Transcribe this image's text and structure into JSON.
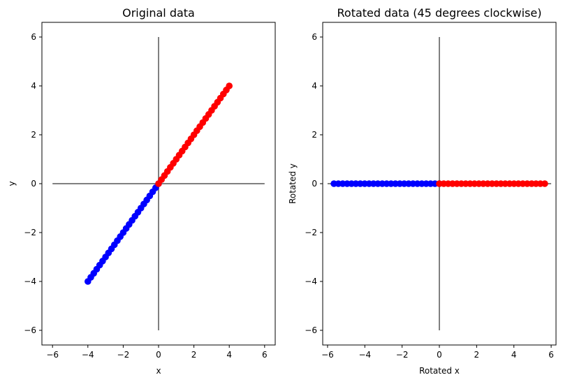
{
  "chart_data": [
    {
      "type": "scatter",
      "title": "Original data",
      "xlabel": "x",
      "ylabel": "y",
      "xlim": [
        -6.6,
        6.6
      ],
      "ylim": [
        -6.6,
        6.6
      ],
      "xticks": [
        -6,
        -4,
        -2,
        0,
        2,
        4,
        6
      ],
      "yticks": [
        -6,
        -4,
        -2,
        0,
        2,
        4,
        6
      ],
      "xtick_labels": [
        "−6",
        "−4",
        "−2",
        "0",
        "2",
        "4",
        "6"
      ],
      "ytick_labels": [
        "−6",
        "−4",
        "−2",
        "0",
        "2",
        "4",
        "6"
      ],
      "reference_lines": [
        {
          "orientation": "horizontal",
          "at": 0,
          "from": -6,
          "to": 6,
          "color": "#808080"
        },
        {
          "orientation": "vertical",
          "at": 0,
          "from": -6,
          "to": 6,
          "color": "#808080"
        }
      ],
      "grid": false,
      "series": [
        {
          "color": "#0000ff",
          "x_start": -4,
          "x_end": 0,
          "y_start": -4,
          "y_end": 0,
          "count": 25
        },
        {
          "color": "#ff0000",
          "x_start": 0,
          "x_end": 4,
          "y_start": 0,
          "y_end": 4,
          "count": 25
        }
      ]
    },
    {
      "type": "scatter",
      "title": "Rotated data (45 degrees clockwise)",
      "xlabel": "Rotated x",
      "ylabel": "Rotated y",
      "xlim": [
        -6.26,
        6.26
      ],
      "ylim": [
        -6.6,
        6.6
      ],
      "xticks": [
        -6,
        -4,
        -2,
        0,
        2,
        4,
        6
      ],
      "yticks": [
        -6,
        -4,
        -2,
        0,
        2,
        4,
        6
      ],
      "xtick_labels": [
        "−6",
        "−4",
        "−2",
        "0",
        "2",
        "4",
        "6"
      ],
      "ytick_labels": [
        "−6",
        "−4",
        "−2",
        "0",
        "2",
        "4",
        "6"
      ],
      "reference_lines": [
        {
          "orientation": "horizontal",
          "at": 0,
          "from": -6,
          "to": 6,
          "color": "#808080"
        },
        {
          "orientation": "vertical",
          "at": 0,
          "from": -6,
          "to": 6,
          "color": "#808080"
        }
      ],
      "grid": false,
      "series": [
        {
          "color": "#0000ff",
          "x_start": -5.657,
          "x_end": 0,
          "y_start": 0,
          "y_end": 0,
          "count": 25
        },
        {
          "color": "#ff0000",
          "x_start": 0,
          "x_end": 5.657,
          "y_start": 0,
          "y_end": 0,
          "count": 25
        }
      ]
    }
  ]
}
